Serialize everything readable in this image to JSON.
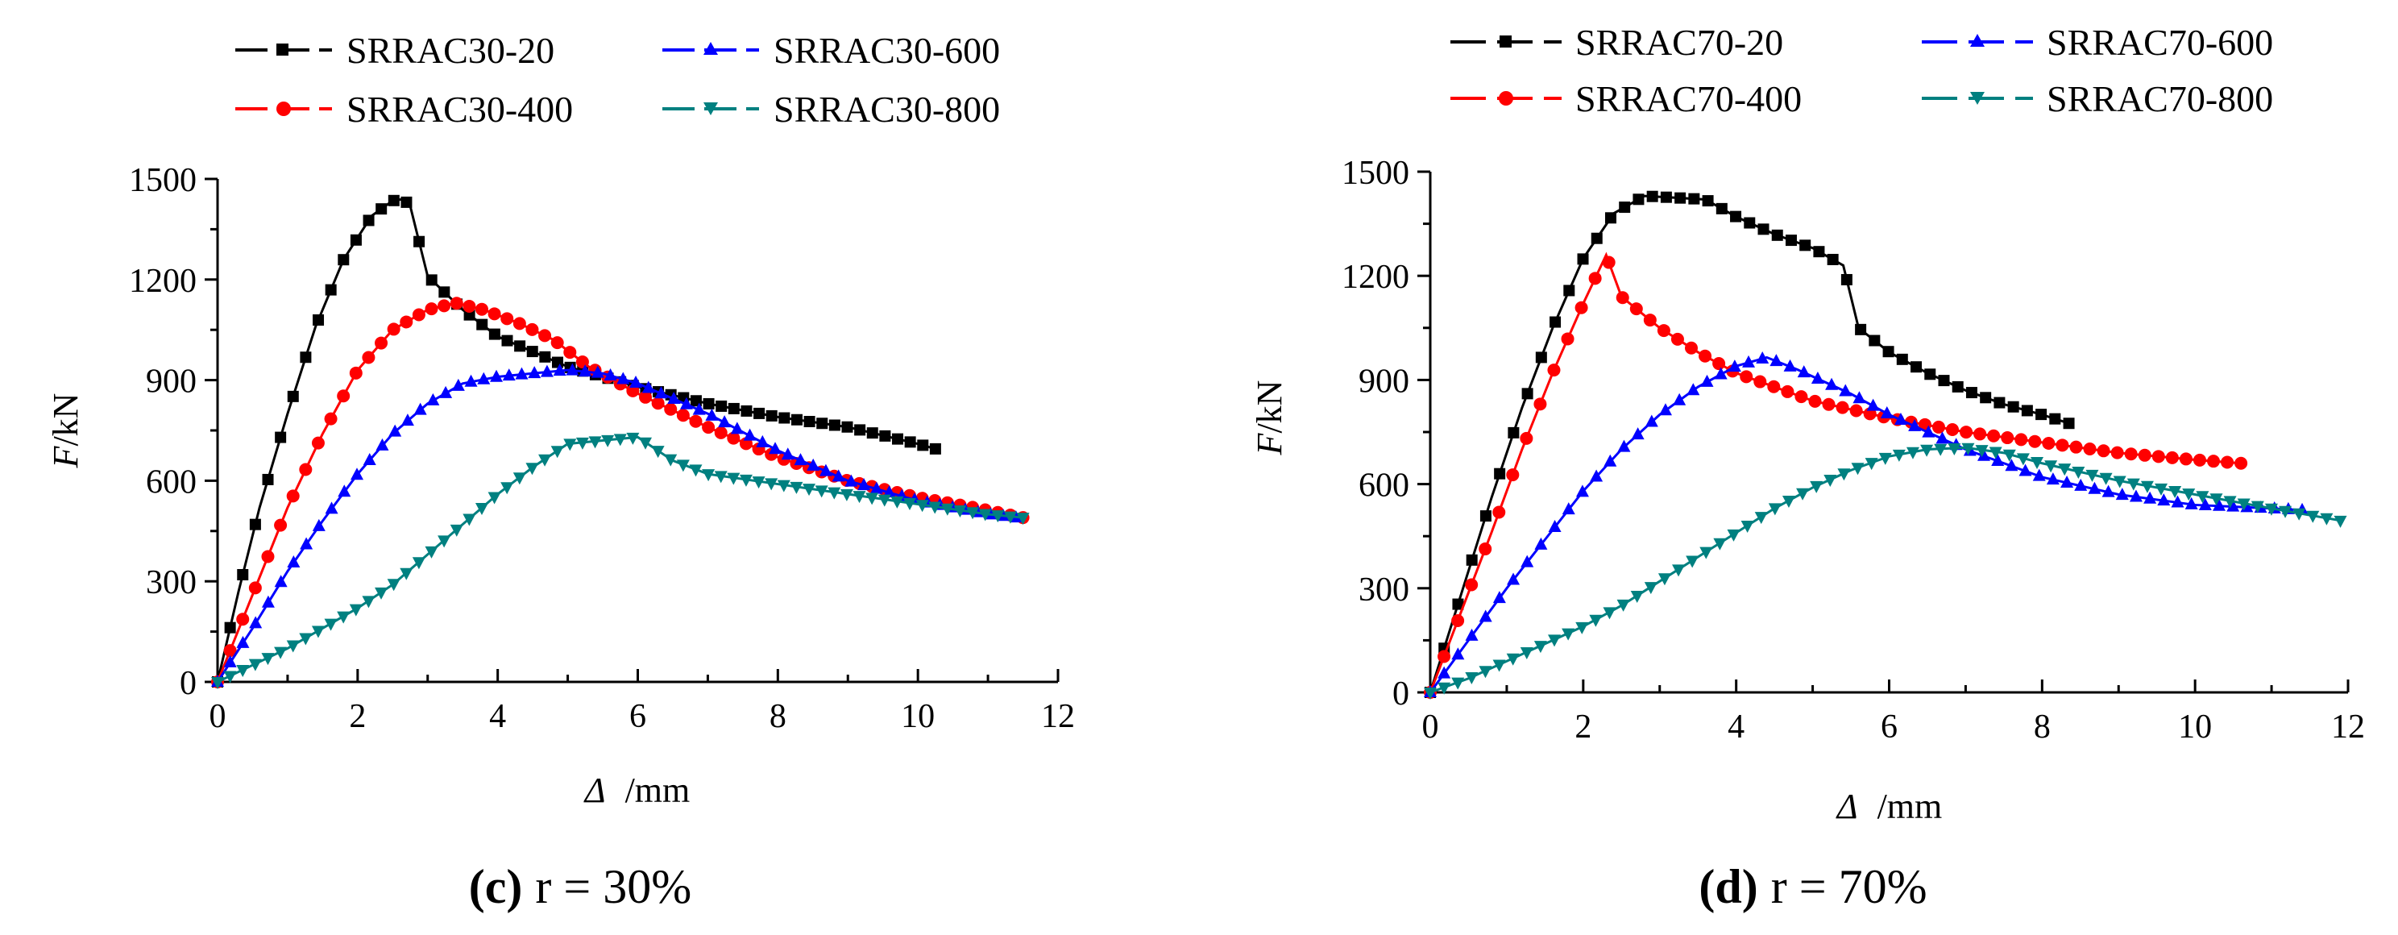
{
  "chart_data": [
    {
      "type": "line",
      "caption_letter": "(c)",
      "caption_text": "r = 30%",
      "ylabel_italic": "F",
      "ylabel_rest": "/kN",
      "xlabel_symbol": "Δ",
      "xlabel_rest": "/mm",
      "xlim": [
        0,
        12
      ],
      "ylim": [
        0,
        1500
      ],
      "xticks": [
        0,
        2,
        4,
        6,
        8,
        10,
        12
      ],
      "yticks": [
        0,
        300,
        600,
        900,
        1200,
        1500
      ],
      "grid": false,
      "legend_position": "top",
      "series": [
        {
          "name": "SRRAC30-20",
          "color": "#000000",
          "marker": "square",
          "x": [
            0,
            0.3,
            0.6,
            1.0,
            1.4,
            1.8,
            2.2,
            2.5,
            2.65,
            2.75,
            3.0,
            3.5,
            4.0,
            5.0,
            6.0,
            7.0,
            8.0,
            9.0,
            10.0,
            10.25
          ],
          "y": [
            0,
            270,
            520,
            800,
            1060,
            1260,
            1390,
            1435,
            1440,
            1420,
            1210,
            1110,
            1030,
            940,
            880,
            830,
            790,
            760,
            710,
            695
          ]
        },
        {
          "name": "SRRAC30-400",
          "color": "#ff0000",
          "marker": "circle",
          "x": [
            0,
            0.5,
            1.0,
            1.5,
            2.0,
            2.5,
            3.0,
            3.4,
            3.8,
            4.3,
            4.8,
            5.3,
            6.0,
            7.0,
            8.0,
            9.0,
            10.0,
            10.8,
            11.5
          ],
          "y": [
            0,
            260,
            520,
            740,
            930,
            1050,
            1110,
            1130,
            1110,
            1070,
            1020,
            940,
            860,
            760,
            670,
            600,
            550,
            520,
            490
          ]
        },
        {
          "name": "SRRAC30-600",
          "color": "#0000ff",
          "marker": "triangle-up",
          "x": [
            0,
            0.5,
            1.0,
            1.5,
            2.0,
            2.5,
            3.0,
            3.5,
            4.0,
            4.5,
            5.0,
            5.5,
            6.0,
            7.0,
            8.0,
            9.0,
            10.0,
            11.0,
            11.4
          ],
          "y": [
            0,
            160,
            330,
            480,
            620,
            740,
            830,
            890,
            910,
            920,
            930,
            920,
            890,
            800,
            690,
            600,
            540,
            500,
            490
          ]
        },
        {
          "name": "SRRAC30-800",
          "color": "#008080",
          "marker": "triangle-down",
          "x": [
            0,
            0.5,
            1.0,
            1.5,
            2.0,
            2.5,
            3.0,
            3.5,
            4.0,
            4.5,
            5.0,
            5.5,
            6.0,
            6.5,
            7.0,
            8.0,
            9.0,
            10.0,
            11.0,
            11.5
          ],
          "y": [
            0,
            50,
            100,
            160,
            220,
            290,
            380,
            470,
            560,
            640,
            710,
            720,
            730,
            660,
            620,
            590,
            560,
            530,
            500,
            490
          ]
        }
      ]
    },
    {
      "type": "line",
      "caption_letter": "(d)",
      "caption_text": "r = 70%",
      "ylabel_italic": "F",
      "ylabel_rest": "/kN",
      "xlabel_symbol": "Δ",
      "xlabel_rest": "/mm",
      "xlim": [
        0,
        12
      ],
      "ylim": [
        0,
        1500
      ],
      "xticks": [
        0,
        2,
        4,
        6,
        8,
        10,
        12
      ],
      "yticks": [
        0,
        300,
        600,
        900,
        1200,
        1500
      ],
      "grid": false,
      "legend_position": "top",
      "series": [
        {
          "name": "SRRAC70-20",
          "color": "#000000",
          "marker": "square",
          "x": [
            0,
            0.4,
            0.8,
            1.2,
            1.6,
            2.0,
            2.4,
            2.8,
            3.2,
            3.6,
            4.0,
            4.5,
            5.0,
            5.4,
            5.6,
            6.0,
            6.5,
            7.0,
            7.5,
            8.0,
            8.35
          ],
          "y": [
            0,
            280,
            560,
            820,
            1050,
            1250,
            1380,
            1430,
            1425,
            1420,
            1370,
            1320,
            1280,
            1230,
            1050,
            980,
            920,
            870,
            830,
            800,
            775
          ]
        },
        {
          "name": "SRRAC70-400",
          "color": "#ff0000",
          "marker": "circle",
          "x": [
            0,
            0.4,
            0.8,
            1.2,
            1.6,
            2.0,
            2.3,
            2.5,
            3.0,
            3.5,
            4.0,
            5.0,
            6.0,
            7.0,
            8.0,
            9.0,
            10.0,
            10.6
          ],
          "y": [
            0,
            230,
            460,
            700,
            920,
            1120,
            1260,
            1140,
            1050,
            980,
            920,
            840,
            790,
            750,
            720,
            690,
            670,
            660
          ]
        },
        {
          "name": "SRRAC70-600",
          "color": "#0000ff",
          "marker": "triangle-up",
          "x": [
            0,
            0.5,
            1.0,
            1.5,
            2.0,
            2.5,
            3.0,
            3.5,
            4.0,
            4.4,
            4.8,
            5.5,
            6.0,
            7.0,
            8.0,
            9.0,
            10.0,
            11.0,
            11.4
          ],
          "y": [
            0,
            150,
            300,
            440,
            580,
            700,
            800,
            880,
            940,
            965,
            930,
            860,
            800,
            700,
            620,
            570,
            540,
            530,
            525
          ]
        },
        {
          "name": "SRRAC70-800",
          "color": "#008080",
          "marker": "triangle-down",
          "x": [
            0,
            0.5,
            1.0,
            1.5,
            2.0,
            2.5,
            3.0,
            3.5,
            4.0,
            4.5,
            5.0,
            5.5,
            6.0,
            6.5,
            7.0,
            7.5,
            8.0,
            9.0,
            10.0,
            11.0,
            11.9
          ],
          "y": [
            0,
            40,
            90,
            140,
            190,
            250,
            320,
            390,
            460,
            530,
            590,
            640,
            680,
            700,
            705,
            690,
            660,
            610,
            570,
            530,
            495
          ]
        }
      ]
    }
  ]
}
